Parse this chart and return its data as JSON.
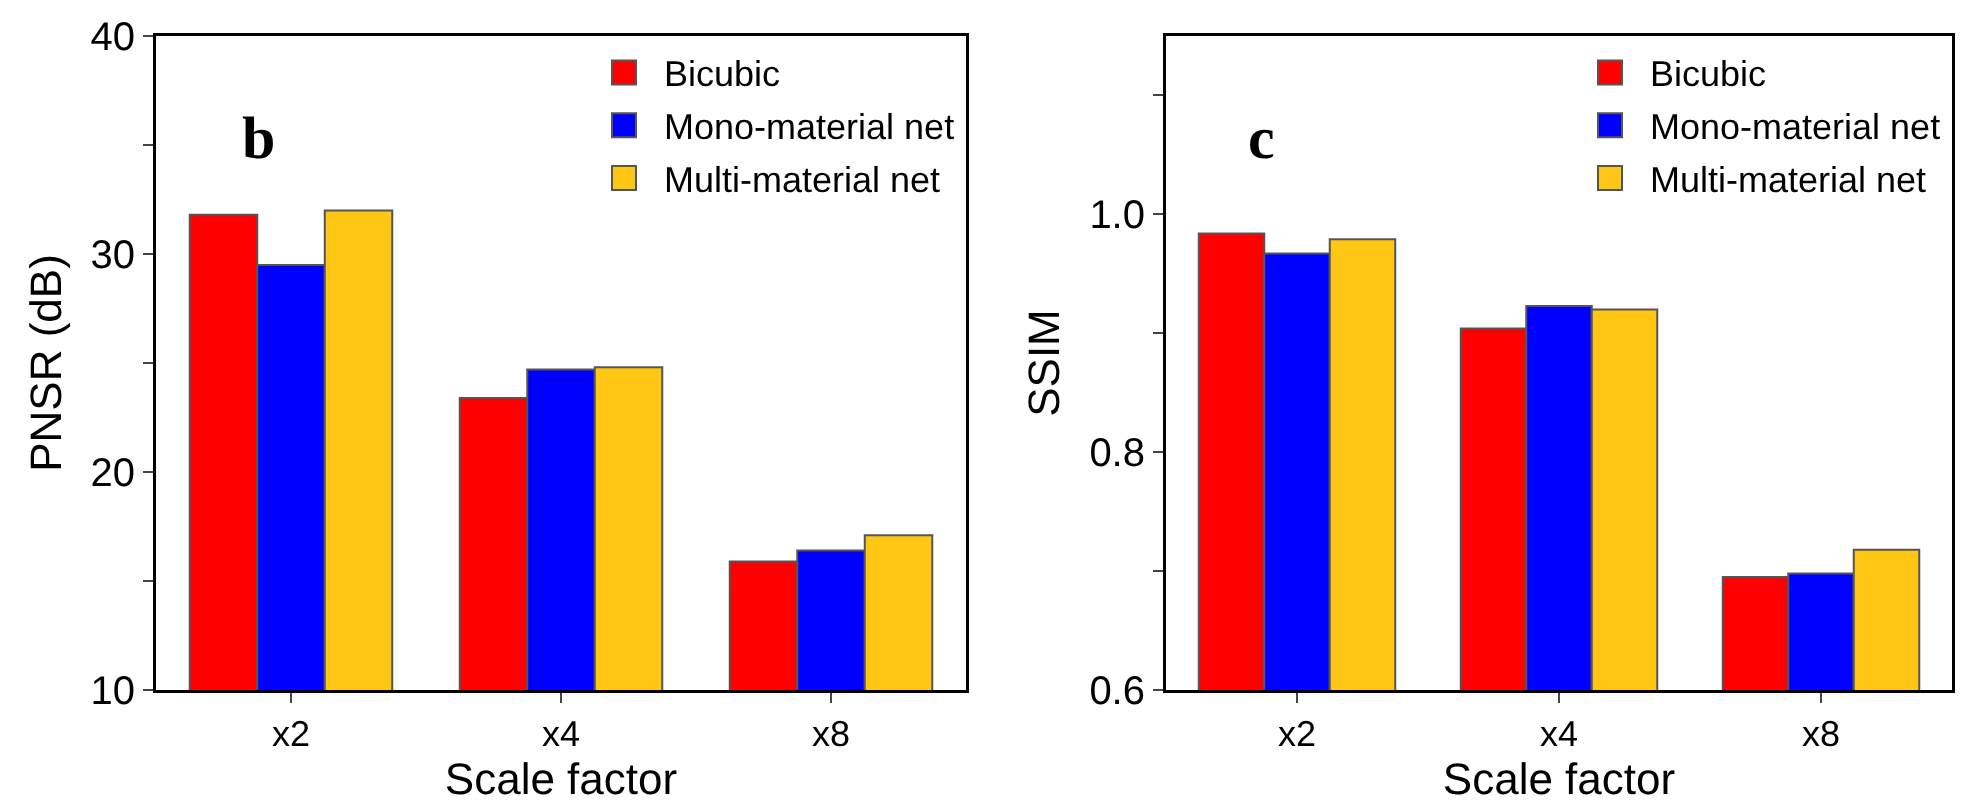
{
  "chart_data": [
    {
      "type": "bar",
      "xlabel": "Scale factor",
      "ylabel": "PNSR (dB)",
      "annotations": [
        "b"
      ],
      "categories": [
        "x2",
        "x4",
        "x8"
      ],
      "series": [
        {
          "name": "Bicubic",
          "color": "#ff0000",
          "values": [
            31.8,
            23.4,
            15.9
          ]
        },
        {
          "name": "Mono-material net",
          "color": "#0000ff",
          "values": [
            29.5,
            24.7,
            16.4
          ]
        },
        {
          "name": "Multi-material net",
          "color": "#ffc614",
          "values": [
            32.0,
            24.8,
            17.1
          ]
        }
      ],
      "ylim": [
        10,
        40
      ],
      "yticks": [
        10,
        {
          "value": 15,
          "label": null
        },
        20,
        {
          "value": 25,
          "label": null
        },
        30,
        {
          "value": 35,
          "label": null
        },
        40
      ],
      "grid": false,
      "legend": "top right"
    },
    {
      "type": "bar",
      "xlabel": "Scale factor",
      "ylabel": "SSIM",
      "annotations": [
        "c"
      ],
      "categories": [
        "x2",
        "x4",
        "x8"
      ],
      "series": [
        {
          "name": "Bicubic",
          "color": "#ff0000",
          "values": [
            0.984,
            0.904,
            0.695
          ]
        },
        {
          "name": "Mono-material net",
          "color": "#0000ff",
          "values": [
            0.967,
            0.923,
            0.698
          ]
        },
        {
          "name": "Multi-material net",
          "color": "#ffc614",
          "values": [
            0.979,
            0.92,
            0.718
          ]
        }
      ],
      "ylim": [
        0.6,
        1.15
      ],
      "yticks": [
        {
          "value": 0.6,
          "label": "0.6"
        },
        {
          "value": 0.7,
          "label": null
        },
        {
          "value": 0.8,
          "label": "0.8"
        },
        {
          "value": 0.9,
          "label": null
        },
        {
          "value": 1.0,
          "label": "1.0"
        },
        {
          "value": 1.1,
          "label": null
        }
      ],
      "grid": false,
      "legend": "top right"
    }
  ]
}
